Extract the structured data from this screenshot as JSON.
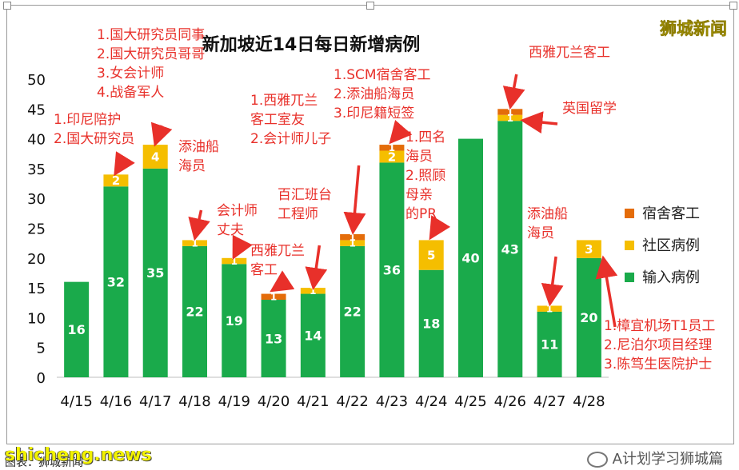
{
  "chart_data": {
    "type": "bar",
    "stacked": true,
    "title": "新加坡近14日每日新增病例",
    "categories": [
      "4/15",
      "4/16",
      "4/17",
      "4/18",
      "4/19",
      "4/20",
      "4/21",
      "4/22",
      "4/23",
      "4/24",
      "4/25",
      "4/26",
      "4/27",
      "4/28"
    ],
    "series": [
      {
        "name": "输入病例",
        "color": "#1aaa4b",
        "values": [
          16,
          32,
          35,
          22,
          19,
          13,
          14,
          22,
          36,
          18,
          40,
          43,
          11,
          20
        ]
      },
      {
        "name": "社区病例",
        "color": "#f5be00",
        "values": [
          0,
          2,
          4,
          1,
          1,
          0,
          1,
          1,
          2,
          5,
          0,
          1,
          1,
          3
        ]
      },
      {
        "name": "宿舍客工",
        "color": "#e46c0a",
        "values": [
          0,
          0,
          0,
          0,
          0,
          1,
          0,
          1,
          1,
          0,
          0,
          1,
          0,
          0
        ]
      }
    ],
    "ylim": [
      0,
      50
    ],
    "yticks": [
      0,
      5,
      10,
      15,
      20,
      25,
      30,
      35,
      40,
      45,
      50
    ],
    "legend_position": "right",
    "grid": false,
    "colors": {
      "annotation": "#e8302a",
      "axis": "#bfbfbf"
    },
    "annotations": [
      {
        "target": "4/16",
        "lines": [
          "1.印尼陪护",
          "2.国大研究员"
        ]
      },
      {
        "target": "4/17",
        "lines": [
          "1.国大研究员同事",
          "2.国大研究员哥哥",
          "3.女会计师",
          "4.战备军人"
        ]
      },
      {
        "target": "4/18",
        "lines": [
          "添油船",
          "海员"
        ]
      },
      {
        "target": "4/19",
        "lines": [
          "会计师",
          "丈夫"
        ]
      },
      {
        "target": "4/20",
        "lines": [
          "西雅兀兰",
          "客工"
        ]
      },
      {
        "target": "4/21",
        "lines": [
          "百汇班台",
          "工程师"
        ]
      },
      {
        "target": "4/22",
        "lines": [
          "1.西雅兀兰",
          "客工室友",
          "2.会计师儿子"
        ]
      },
      {
        "target": "4/23",
        "lines": [
          "1.SCM宿舍客工",
          "2.添油船海员",
          "3.印尼籍短签"
        ]
      },
      {
        "target": "4/24",
        "lines": [
          "1.四名",
          "海员",
          "2.照顾",
          "母亲",
          "的PR"
        ]
      },
      {
        "target": "4/26-top",
        "lines": [
          "西雅兀兰客工"
        ]
      },
      {
        "target": "4/26",
        "lines": [
          "英国留学"
        ]
      },
      {
        "target": "4/27",
        "lines": [
          "添油船",
          "海员"
        ]
      },
      {
        "target": "4/28",
        "lines": [
          "1.樟宜机场T1员工",
          "2.尼泊尔项目经理",
          "3.陈笃生医院护士"
        ]
      }
    ]
  },
  "watermark": {
    "brand": "狮城新闻",
    "site": "shicheng.news",
    "account": "A计划学习狮城篇",
    "caption": "图表：狮城新闻"
  }
}
